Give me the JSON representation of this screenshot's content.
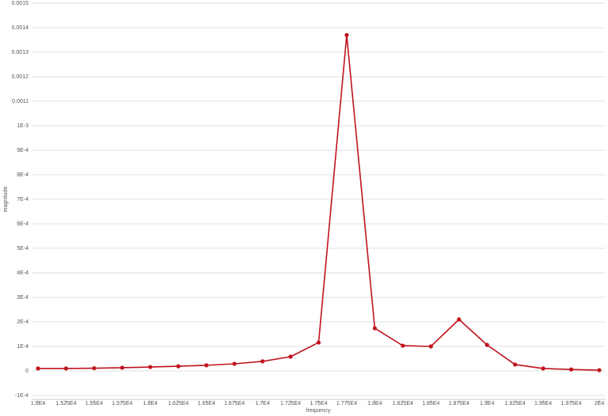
{
  "chart_data": {
    "type": "line",
    "x_label": "frequency",
    "y_label": "magnitude",
    "x": [
      15000,
      15250,
      15500,
      15750,
      16000,
      16250,
      16500,
      16750,
      17000,
      17250,
      17500,
      17750,
      18000,
      18250,
      18500,
      18750,
      19000,
      19250,
      19500,
      19750,
      20000
    ],
    "series": [
      {
        "name": "magnitude",
        "color": "#c0121c",
        "values": [
          1e-05,
          1e-05,
          1.1e-05,
          1.3e-05,
          1.6e-05,
          1.9e-05,
          2.3e-05,
          2.9e-05,
          3.9e-05,
          5.8e-05,
          0.000116,
          0.00137,
          0.000174,
          0.000103,
          0.0001,
          0.00021,
          0.000106,
          2.6e-05,
          1e-05,
          6e-06,
          3e-06
        ]
      }
    ],
    "xlim": [
      15000,
      20000
    ],
    "xticks": [
      {
        "value": 15000,
        "label": "1.5E4"
      },
      {
        "value": 15250,
        "label": "1.525E4"
      },
      {
        "value": 15500,
        "label": "1.55E4"
      },
      {
        "value": 15750,
        "label": "1.575E4"
      },
      {
        "value": 16000,
        "label": "1.6E4"
      },
      {
        "value": 16250,
        "label": "1.625E4"
      },
      {
        "value": 16500,
        "label": "1.65E4"
      },
      {
        "value": 16750,
        "label": "1.675E4"
      },
      {
        "value": 17000,
        "label": "1.7E4"
      },
      {
        "value": 17250,
        "label": "1.725E4"
      },
      {
        "value": 17500,
        "label": "1.75E4"
      },
      {
        "value": 17750,
        "label": "1.775E4"
      },
      {
        "value": 18000,
        "label": "1.8E4"
      },
      {
        "value": 18250,
        "label": "1.825E4"
      },
      {
        "value": 18500,
        "label": "1.85E4"
      },
      {
        "value": 18750,
        "label": "1.875E4"
      },
      {
        "value": 19000,
        "label": "1.9E4"
      },
      {
        "value": 19250,
        "label": "1.925E4"
      },
      {
        "value": 19500,
        "label": "1.95E4"
      },
      {
        "value": 19750,
        "label": "1.975E4"
      },
      {
        "value": 20000,
        "label": "2E4"
      }
    ],
    "ylim": [
      -0.0001,
      0.0015
    ],
    "yticks": [
      {
        "value": -0.0001,
        "label": "-1E-4"
      },
      0,
      {
        "value": 0.0001,
        "label": "1E-4"
      },
      {
        "value": 0.0002,
        "label": "2E-4"
      },
      {
        "value": 0.0003,
        "label": "3E-4"
      },
      {
        "value": 0.0004,
        "label": "4E-4"
      },
      {
        "value": 0.0005,
        "label": "5E-4"
      },
      {
        "value": 0.0006,
        "label": "6E-4"
      },
      {
        "value": 0.0007,
        "label": "7E-4"
      },
      {
        "value": 0.0008,
        "label": "8E-4"
      },
      {
        "value": 0.0009,
        "label": "9E-4"
      },
      {
        "value": 0.001,
        "label": "1E-3"
      },
      0.0011,
      0.0012,
      0.0013,
      0.0014,
      0.0015
    ],
    "grid": true
  }
}
